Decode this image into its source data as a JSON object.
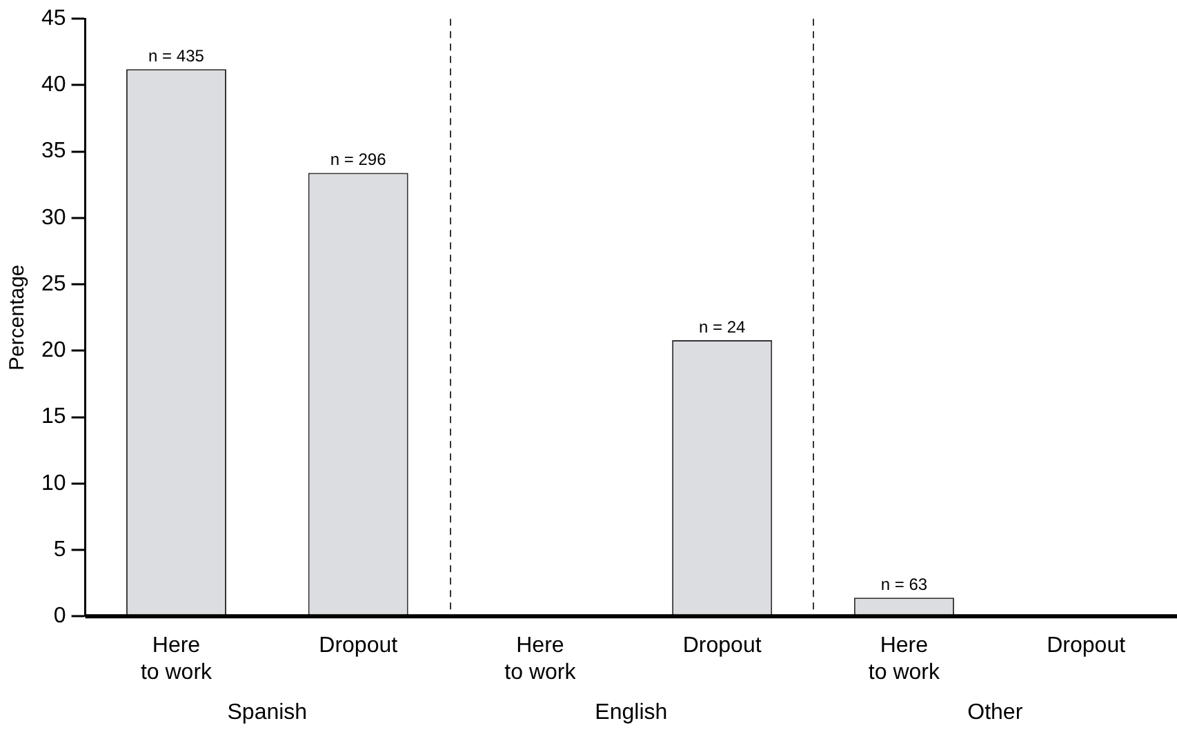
{
  "chart_data": {
    "type": "bar",
    "ylabel": "Percentage",
    "categories": [
      "Here to work",
      "Dropout",
      "Here to work",
      "Dropout",
      "Here to work",
      "Dropout"
    ],
    "values": [
      41.2,
      33.4,
      0,
      20.8,
      1.4,
      0
    ],
    "color": "#dcdde0",
    "ylim": [
      0,
      45
    ],
    "yticks": [
      0,
      5,
      10,
      15,
      20,
      25,
      30,
      35,
      40,
      45
    ],
    "grid": false,
    "legend": false,
    "annotations": [
      "Spanish",
      "English",
      "Other",
      "n = 435",
      "n = 296",
      "n = 24",
      "n = 63"
    ]
  }
}
